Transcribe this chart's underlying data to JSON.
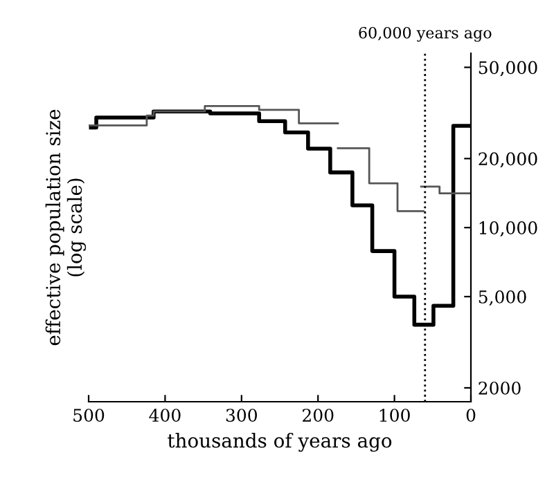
{
  "chart_data": {
    "type": "step",
    "xlabel": "thousands of years ago",
    "ylabel": "effective population size\n(log scale)",
    "log": "y",
    "xlim": [
      500,
      0
    ],
    "xticks": [
      500,
      400,
      300,
      200,
      100,
      0
    ],
    "ylim": [
      1740,
      57600
    ],
    "yticks": [
      {
        "value": 2000,
        "label": "2000"
      },
      {
        "value": 5000,
        "label": "5,000"
      },
      {
        "value": 10000,
        "label": "10,000"
      },
      {
        "value": 20000,
        "label": "20,000"
      },
      {
        "value": 50000,
        "label": "50,000"
      }
    ],
    "grid": false,
    "legend": false,
    "ref_lines": [
      {
        "axis": "x",
        "value": 60,
        "label": "60,000 years ago",
        "line_style": "dotted",
        "color": "#000000"
      }
    ],
    "series": [
      {
        "color": "#000000",
        "x": [
          497,
          490,
          415,
          341,
          277,
          243,
          213,
          184,
          155,
          129,
          100,
          74,
          49,
          23,
          0
        ],
        "values": [
          27300,
          30200,
          32100,
          31500,
          29100,
          26000,
          22100,
          17400,
          12500,
          7900,
          5000,
          3770,
          4560,
          27800,
          27800
        ]
      },
      {
        "color": "#555555",
        "x": [
          500,
          424,
          415,
          348,
          277,
          225,
          174
        ],
        "values": [
          27900,
          30800,
          32100,
          33900,
          32600,
          28500,
          28500
        ]
      },
      {
        "color": "#555555",
        "x": [
          174,
          133,
          96,
          62
        ],
        "values": [
          22200,
          15600,
          11800,
          11800
        ]
      },
      {
        "color": "#555555",
        "x": [
          65,
          41,
          0
        ],
        "values": [
          15100,
          14100,
          14100
        ]
      }
    ]
  }
}
